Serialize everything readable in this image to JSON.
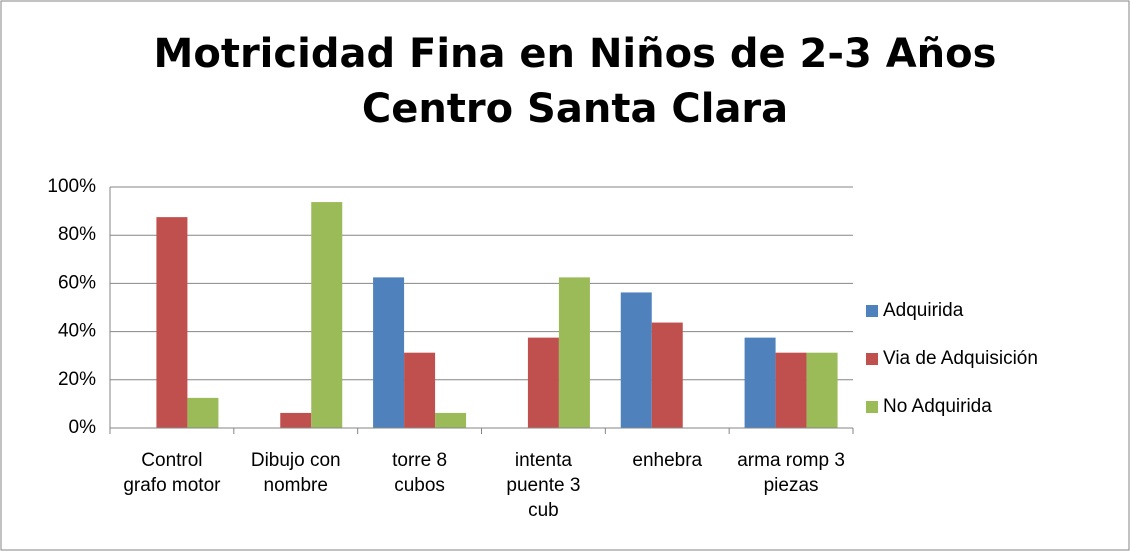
{
  "chart_data": {
    "type": "bar",
    "title": "Motricidad Fina en Niños de 2-3 Años Centro Santa Clara",
    "categories": [
      "Control grafo motor",
      "Dibujo con nombre",
      "torre 8 cubos",
      "intenta puente 3 cub",
      "enhebra",
      "arma romp 3 piezas"
    ],
    "series": [
      {
        "name": "Adquirida",
        "color": "#4f81bd",
        "values": [
          0,
          0,
          62.5,
          0,
          56.25,
          37.5
        ]
      },
      {
        "name": "Via de Adquisición",
        "color": "#c0504d",
        "values": [
          87.5,
          6.25,
          31.25,
          37.5,
          43.75,
          31.25
        ]
      },
      {
        "name": "No Adquirida",
        "color": "#9bbb59",
        "values": [
          12.5,
          93.75,
          6.25,
          62.5,
          0,
          31.25
        ]
      }
    ],
    "ylim": [
      0,
      100
    ],
    "yticks": [
      {
        "value": 0,
        "label": "0%"
      },
      {
        "value": 20,
        "label": "20%"
      },
      {
        "value": 40,
        "label": "40%"
      },
      {
        "value": 60,
        "label": "60%"
      },
      {
        "value": 80,
        "label": "80%"
      },
      {
        "value": 100,
        "label": "100%"
      }
    ],
    "grid": true,
    "legend": "right"
  }
}
